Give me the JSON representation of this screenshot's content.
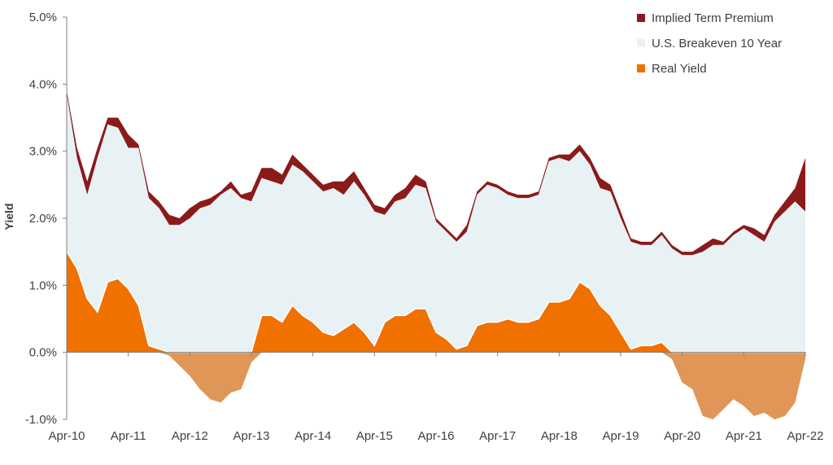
{
  "chart_data": {
    "type": "area",
    "ylabel": "Yield",
    "ylim": [
      -1.0,
      5.0
    ],
    "y_ticks": [
      "5.0%",
      "4.0%",
      "3.0%",
      "2.0%",
      "1.0%",
      "0.0%",
      "-1.0%"
    ],
    "y_tick_values": [
      5.0,
      4.0,
      3.0,
      2.0,
      1.0,
      0.0,
      -1.0
    ],
    "x_tick_labels": [
      "Apr-10",
      "Apr-11",
      "Apr-12",
      "Apr-13",
      "Apr-14",
      "Apr-15",
      "Apr-16",
      "Apr-17",
      "Apr-18",
      "Apr-19",
      "Apr-20",
      "Apr-21",
      "Apr-22"
    ],
    "x_range": [
      "2010-04",
      "2022-04"
    ],
    "grid": false,
    "legend_position": "top-right",
    "colors": {
      "implied_term_premium": "#8B1A1A",
      "breakeven": "#E8F2F5",
      "real_yield_positive": "#F07000",
      "real_yield_negative": "#E09656"
    },
    "series": [
      {
        "name": "Implied Term Premium",
        "x": [
          "2010-04",
          "2010-06",
          "2010-08",
          "2010-10",
          "2010-12",
          "2011-02",
          "2011-04",
          "2011-06",
          "2011-08",
          "2011-10",
          "2011-12",
          "2012-02",
          "2012-04",
          "2012-06",
          "2012-08",
          "2012-10",
          "2012-12",
          "2013-02",
          "2013-04",
          "2013-06",
          "2013-08",
          "2013-10",
          "2013-12",
          "2014-02",
          "2014-04",
          "2014-06",
          "2014-08",
          "2014-10",
          "2014-12",
          "2015-02",
          "2015-04",
          "2015-06",
          "2015-08",
          "2015-10",
          "2015-12",
          "2016-02",
          "2016-04",
          "2016-06",
          "2016-08",
          "2016-10",
          "2016-12",
          "2017-02",
          "2017-04",
          "2017-06",
          "2017-08",
          "2017-10",
          "2017-12",
          "2018-02",
          "2018-04",
          "2018-06",
          "2018-08",
          "2018-10",
          "2018-12",
          "2019-02",
          "2019-04",
          "2019-06",
          "2019-08",
          "2019-10",
          "2019-12",
          "2020-02",
          "2020-04",
          "2020-06",
          "2020-08",
          "2020-10",
          "2020-12",
          "2021-02",
          "2021-04",
          "2021-06",
          "2021-08",
          "2021-10",
          "2021-12",
          "2022-02",
          "2022-04"
        ],
        "values": [
          0.05,
          0.15,
          0.2,
          0.15,
          0.1,
          0.15,
          0.2,
          0.05,
          0.1,
          0.1,
          0.15,
          0.1,
          0.15,
          0.1,
          0.1,
          0.05,
          0.1,
          0.05,
          0.15,
          0.15,
          0.2,
          0.15,
          0.15,
          0.1,
          0.1,
          0.1,
          0.1,
          0.2,
          0.15,
          0.1,
          0.1,
          0.1,
          0.1,
          0.15,
          0.15,
          0.1,
          0.05,
          0.05,
          0.05,
          0.1,
          0.05,
          0.05,
          0.05,
          0.05,
          0.05,
          0.05,
          0.05,
          0.05,
          0.05,
          0.1,
          0.1,
          0.1,
          0.15,
          0.1,
          0.1,
          0.05,
          0.05,
          0.05,
          0.05,
          0.05,
          0.05,
          0.05,
          0.1,
          0.1,
          0.05,
          0.05,
          0.05,
          0.1,
          0.1,
          0.1,
          0.15,
          0.2,
          0.8
        ]
      },
      {
        "name": "U.S. Breakeven 10 Year",
        "x": [
          "2010-04",
          "2010-06",
          "2010-08",
          "2010-10",
          "2010-12",
          "2011-02",
          "2011-04",
          "2011-06",
          "2011-08",
          "2011-10",
          "2011-12",
          "2012-02",
          "2012-04",
          "2012-06",
          "2012-08",
          "2012-10",
          "2012-12",
          "2013-02",
          "2013-04",
          "2013-06",
          "2013-08",
          "2013-10",
          "2013-12",
          "2014-02",
          "2014-04",
          "2014-06",
          "2014-08",
          "2014-10",
          "2014-12",
          "2015-02",
          "2015-04",
          "2015-06",
          "2015-08",
          "2015-10",
          "2015-12",
          "2016-02",
          "2016-04",
          "2016-06",
          "2016-08",
          "2016-10",
          "2016-12",
          "2017-02",
          "2017-04",
          "2017-06",
          "2017-08",
          "2017-10",
          "2017-12",
          "2018-02",
          "2018-04",
          "2018-06",
          "2018-08",
          "2018-10",
          "2018-12",
          "2019-02",
          "2019-04",
          "2019-06",
          "2019-08",
          "2019-10",
          "2019-12",
          "2020-02",
          "2020-04",
          "2020-06",
          "2020-08",
          "2020-10",
          "2020-12",
          "2021-02",
          "2021-04",
          "2021-06",
          "2021-08",
          "2021-10",
          "2021-12",
          "2022-02",
          "2022-04"
        ],
        "values": [
          2.35,
          1.65,
          1.55,
          2.3,
          2.35,
          2.25,
          2.1,
          2.35,
          2.2,
          2.1,
          1.9,
          1.9,
          2.0,
          2.15,
          2.2,
          2.35,
          2.45,
          2.3,
          2.25,
          2.05,
          2.0,
          2.05,
          2.1,
          2.15,
          2.1,
          2.1,
          2.2,
          2.0,
          2.1,
          2.05,
          2.0,
          1.6,
          1.7,
          1.75,
          1.85,
          1.8,
          1.65,
          1.6,
          1.6,
          1.7,
          1.95,
          2.05,
          2.0,
          1.85,
          1.85,
          1.85,
          1.85,
          2.1,
          2.15,
          2.05,
          1.95,
          1.85,
          1.75,
          1.85,
          1.7,
          1.6,
          1.5,
          1.5,
          1.6,
          1.55,
          1.45,
          1.45,
          1.5,
          1.6,
          1.6,
          1.75,
          1.85,
          1.75,
          1.65,
          1.95,
          2.1,
          2.25,
          2.1
        ]
      },
      {
        "name": "Real Yield",
        "x": [
          "2010-04",
          "2010-06",
          "2010-08",
          "2010-10",
          "2010-12",
          "2011-02",
          "2011-04",
          "2011-06",
          "2011-08",
          "2011-10",
          "2011-12",
          "2012-02",
          "2012-04",
          "2012-06",
          "2012-08",
          "2012-10",
          "2012-12",
          "2013-02",
          "2013-04",
          "2013-06",
          "2013-08",
          "2013-10",
          "2013-12",
          "2014-02",
          "2014-04",
          "2014-06",
          "2014-08",
          "2014-10",
          "2014-12",
          "2015-02",
          "2015-04",
          "2015-06",
          "2015-08",
          "2015-10",
          "2015-12",
          "2016-02",
          "2016-04",
          "2016-06",
          "2016-08",
          "2016-10",
          "2016-12",
          "2017-02",
          "2017-04",
          "2017-06",
          "2017-08",
          "2017-10",
          "2017-12",
          "2018-02",
          "2018-04",
          "2018-06",
          "2018-08",
          "2018-10",
          "2018-12",
          "2019-02",
          "2019-04",
          "2019-06",
          "2019-08",
          "2019-10",
          "2019-12",
          "2020-02",
          "2020-04",
          "2020-06",
          "2020-08",
          "2020-10",
          "2020-12",
          "2021-02",
          "2021-04",
          "2021-06",
          "2021-08",
          "2021-10",
          "2021-12",
          "2022-02",
          "2022-04"
        ],
        "values": [
          1.5,
          1.25,
          0.8,
          0.6,
          1.05,
          1.1,
          0.95,
          0.7,
          0.1,
          0.05,
          -0.05,
          -0.2,
          -0.35,
          -0.55,
          -0.7,
          -0.75,
          -0.6,
          -0.55,
          -0.15,
          0.55,
          0.55,
          0.45,
          0.7,
          0.55,
          0.45,
          0.3,
          0.25,
          0.35,
          0.45,
          0.3,
          0.1,
          0.45,
          0.55,
          0.55,
          0.65,
          0.65,
          0.3,
          0.2,
          0.05,
          0.1,
          0.4,
          0.45,
          0.45,
          0.5,
          0.45,
          0.45,
          0.5,
          0.75,
          0.75,
          0.8,
          1.05,
          0.95,
          0.7,
          0.55,
          0.3,
          0.05,
          0.1,
          0.1,
          0.15,
          -0.1,
          -0.45,
          -0.55,
          -0.95,
          -1.0,
          -0.85,
          -0.7,
          -0.8,
          -0.95,
          -0.9,
          -1.0,
          -0.95,
          -0.75,
          -0.1
        ]
      }
    ]
  }
}
